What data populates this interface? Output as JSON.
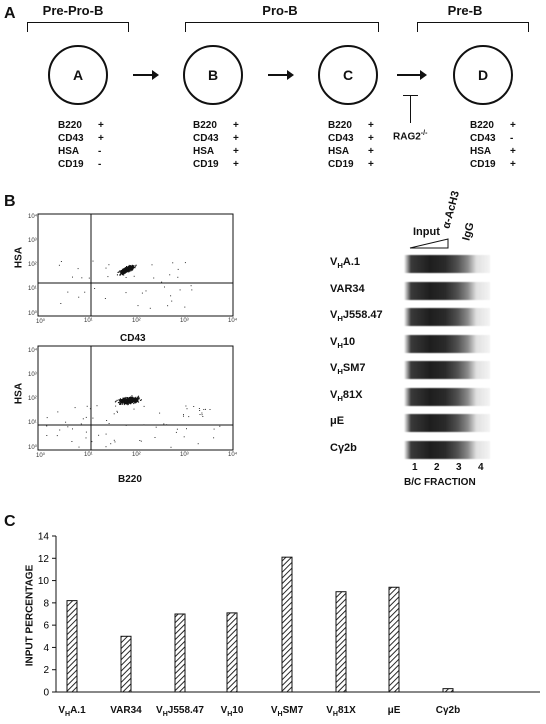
{
  "panelA": {
    "letter": "A",
    "stages": [
      {
        "title": "Pre-Pro-B"
      },
      {
        "title": "Pro-B"
      },
      {
        "title": "Pre-B"
      }
    ],
    "cells": [
      {
        "label": "A",
        "markers": [
          [
            "B220",
            "+"
          ],
          [
            "CD43",
            "+"
          ],
          [
            "HSA",
            "-"
          ],
          [
            "CD19",
            "-"
          ]
        ]
      },
      {
        "label": "B",
        "markers": [
          [
            "B220",
            "+"
          ],
          [
            "CD43",
            "+"
          ],
          [
            "HSA",
            "+"
          ],
          [
            "CD19",
            "+"
          ]
        ]
      },
      {
        "label": "C",
        "markers": [
          [
            "B220",
            "+"
          ],
          [
            "CD43",
            "+"
          ],
          [
            "HSA",
            "+"
          ],
          [
            "CD19",
            "+"
          ]
        ]
      },
      {
        "label": "D",
        "markers": [
          [
            "B220",
            "+"
          ],
          [
            "CD43",
            "-"
          ],
          [
            "HSA",
            "+"
          ],
          [
            "CD19",
            "+"
          ]
        ]
      }
    ],
    "block_label": "RAG2",
    "block_sup": "-/-"
  },
  "panelB": {
    "letter": "B",
    "flow_top": {
      "ylabel": "HSA",
      "xlabel": "CD43"
    },
    "flow_bottom": {
      "ylabel": "HSA",
      "xlabel": "B220"
    },
    "decades": [
      "10⁰",
      "10¹",
      "10²",
      "10³",
      "10⁴"
    ],
    "gel_header": {
      "input": "Input",
      "antibody": "α-AcH3",
      "igg": "IgG"
    },
    "gel_rows": [
      {
        "pre": "V",
        "sub": "H",
        "post": "A.1"
      },
      {
        "pre": "VAR34",
        "sub": "",
        "post": ""
      },
      {
        "pre": "V",
        "sub": "H",
        "post": "J558.47"
      },
      {
        "pre": "V",
        "sub": "H",
        "post": "10"
      },
      {
        "pre": "V",
        "sub": "H",
        "post": "SM7"
      },
      {
        "pre": "V",
        "sub": "H",
        "post": "81X"
      },
      {
        "pre": "μE",
        "sub": "",
        "post": ""
      },
      {
        "pre": "Cγ2b",
        "sub": "",
        "post": ""
      }
    ],
    "lanes": [
      "1",
      "2",
      "3",
      "4"
    ],
    "fraction_label": "B/C FRACTION"
  },
  "panelC": {
    "letter": "C"
  },
  "chart_data": {
    "type": "bar",
    "ylabel": "INPUT PERCENTAGE",
    "xlabel": "",
    "ylim": [
      0,
      14
    ],
    "yticks": [
      "0",
      "2",
      "4",
      "6",
      "8",
      "10",
      "12",
      "14"
    ],
    "categories": [
      {
        "pre": "V",
        "sub": "H",
        "post": "A.1"
      },
      {
        "pre": "VAR34",
        "sub": "",
        "post": ""
      },
      {
        "pre": "V",
        "sub": "H",
        "post": "J558.47"
      },
      {
        "pre": "V",
        "sub": "H",
        "post": "10"
      },
      {
        "pre": "V",
        "sub": "H",
        "post": "SM7"
      },
      {
        "pre": "V",
        "sub": "H",
        "post": "81X"
      },
      {
        "pre": "μE",
        "sub": "",
        "post": ""
      },
      {
        "pre": "Cγ2b",
        "sub": "",
        "post": ""
      }
    ],
    "values": [
      8.2,
      5.0,
      7.0,
      7.1,
      12.1,
      9.0,
      9.4,
      0.3
    ]
  }
}
